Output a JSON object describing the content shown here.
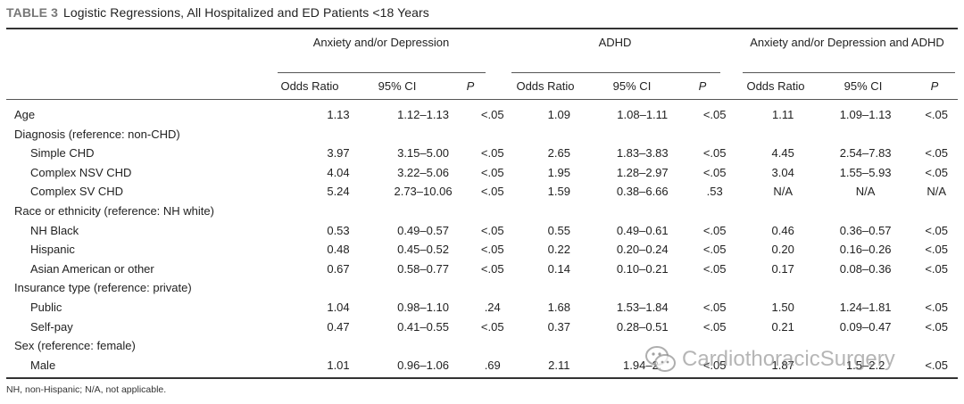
{
  "caption": {
    "label": "TABLE 3",
    "title": "Logistic Regressions, All Hospitalized and ED Patients <18 Years"
  },
  "groups": [
    "Anxiety and/or Depression",
    "ADHD",
    "Anxiety and/or Depression and ADHD"
  ],
  "subheaders": [
    "Odds Ratio",
    "95% CI",
    "P"
  ],
  "rows": [
    {
      "label": "Age",
      "indent": false,
      "cells": [
        "1.13",
        "1.12–1.13",
        "<.05",
        "1.09",
        "1.08–1.11",
        "<.05",
        "1.11",
        "1.09–1.13",
        "<.05"
      ]
    },
    {
      "label": "Diagnosis (reference: non-CHD)",
      "indent": false,
      "cells": [
        "",
        "",
        "",
        "",
        "",
        "",
        "",
        "",
        ""
      ]
    },
    {
      "label": "Simple CHD",
      "indent": true,
      "cells": [
        "3.97",
        "3.15–5.00",
        "<.05",
        "2.65",
        "1.83–3.83",
        "<.05",
        "4.45",
        "2.54–7.83",
        "<.05"
      ]
    },
    {
      "label": "Complex NSV CHD",
      "indent": true,
      "cells": [
        "4.04",
        "3.22–5.06",
        "<.05",
        "1.95",
        "1.28–2.97",
        "<.05",
        "3.04",
        "1.55–5.93",
        "<.05"
      ]
    },
    {
      "label": "Complex SV CHD",
      "indent": true,
      "cells": [
        "5.24",
        "2.73–10.06",
        "<.05",
        "1.59",
        "0.38–6.66",
        ".53",
        "N/A",
        "N/A",
        "N/A"
      ]
    },
    {
      "label": "Race or ethnicity (reference: NH white)",
      "indent": false,
      "cells": [
        "",
        "",
        "",
        "",
        "",
        "",
        "",
        "",
        ""
      ]
    },
    {
      "label": "NH Black",
      "indent": true,
      "cells": [
        "0.53",
        "0.49–0.57",
        "<.05",
        "0.55",
        "0.49–0.61",
        "<.05",
        "0.46",
        "0.36–0.57",
        "<.05"
      ]
    },
    {
      "label": "Hispanic",
      "indent": true,
      "cells": [
        "0.48",
        "0.45–0.52",
        "<.05",
        "0.22",
        "0.20–0.24",
        "<.05",
        "0.20",
        "0.16–0.26",
        "<.05"
      ]
    },
    {
      "label": "Asian American or other",
      "indent": true,
      "cells": [
        "0.67",
        "0.58–0.77",
        "<.05",
        "0.14",
        "0.10–0.21",
        "<.05",
        "0.17",
        "0.08–0.36",
        "<.05"
      ]
    },
    {
      "label": "Insurance type (reference: private)",
      "indent": false,
      "cells": [
        "",
        "",
        "",
        "",
        "",
        "",
        "",
        "",
        ""
      ]
    },
    {
      "label": "Public",
      "indent": true,
      "cells": [
        "1.04",
        "0.98–1.10",
        ".24",
        "1.68",
        "1.53–1.84",
        "<.05",
        "1.50",
        "1.24–1.81",
        "<.05"
      ]
    },
    {
      "label": "Self-pay",
      "indent": true,
      "cells": [
        "0.47",
        "0.41–0.55",
        "<.05",
        "0.37",
        "0.28–0.51",
        "<.05",
        "0.21",
        "0.09–0.47",
        "<.05"
      ]
    },
    {
      "label": "Sex (reference: female)",
      "indent": false,
      "cells": [
        "",
        "",
        "",
        "",
        "",
        "",
        "",
        "",
        ""
      ]
    },
    {
      "label": "Male",
      "indent": true,
      "cells": [
        "1.01",
        "0.96–1.06",
        ".69",
        "2.11",
        "1.94–2.",
        "<.05",
        "1.87",
        "1.5–2.2",
        "<.05"
      ]
    }
  ],
  "footnote": "NH, non-Hispanic; N/A, not applicable.",
  "watermark": {
    "text": "CardiothoracicSurgery",
    "icon": "wechat-icon"
  }
}
